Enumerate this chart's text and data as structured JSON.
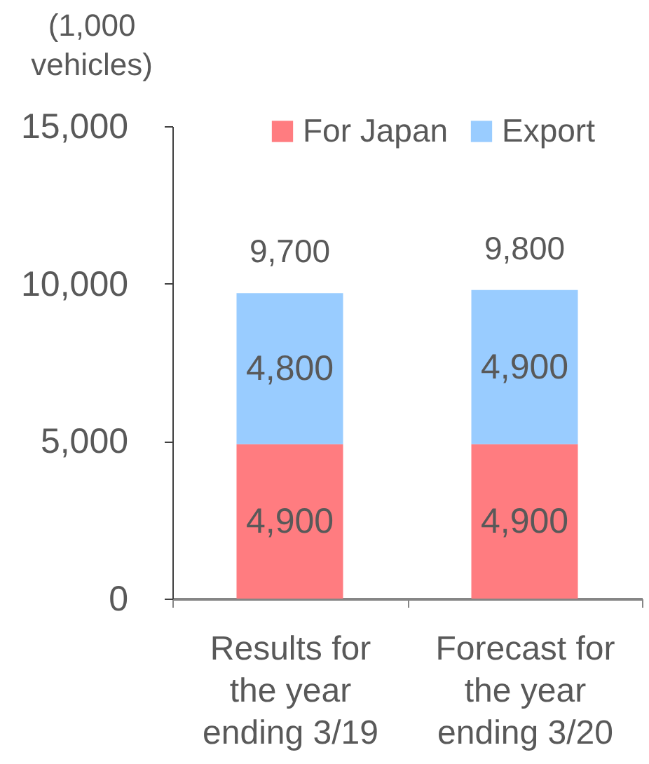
{
  "chart_data": {
    "type": "bar",
    "stacked": true,
    "ylabel": "(1,000 vehicles)",
    "categories": [
      "Results for the year ending 3/19",
      "Forecast for the year ending 3/20"
    ],
    "series": [
      {
        "name": "For  Japan",
        "color": "#ff7c80",
        "values": [
          4900,
          4900
        ],
        "value_labels": [
          "4,900",
          "4,900"
        ]
      },
      {
        "name": "Export",
        "color": "#99ccff",
        "values": [
          4800,
          4900
        ],
        "value_labels": [
          "4,800",
          "4,900"
        ]
      }
    ],
    "ylim": [
      0,
      15000
    ],
    "yticks": [
      0,
      {
        "value": 5000,
        "label": "5,000"
      },
      {
        "value": 10000,
        "label": "10,000"
      },
      {
        "value": 15000,
        "label": "15,000"
      }
    ],
    "grid": false,
    "legend": "top right",
    "totals": [
      "9,700",
      "9,800"
    ]
  }
}
